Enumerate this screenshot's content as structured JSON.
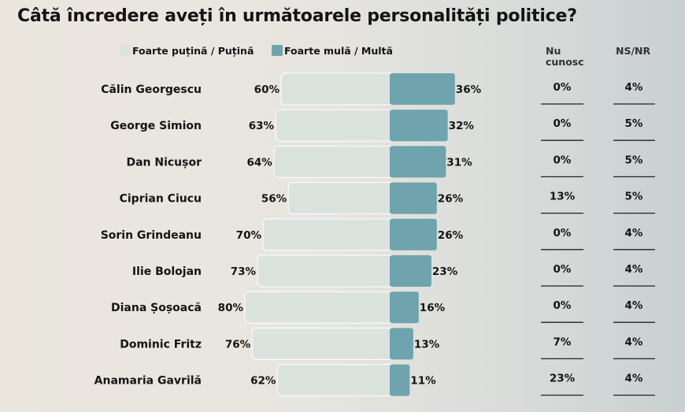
{
  "chart_data": {
    "type": "bar",
    "title": "Câtă încredere aveți în următoarele personalități politice?",
    "legend": {
      "low": "Foarte puțină / Puțină",
      "high": "Foarte mulă / Multă"
    },
    "extra_columns": {
      "nu_cunosc": "Nu cunosc",
      "ns_nr": "NS/NR"
    },
    "categories": [
      "Călin Georgescu",
      "George Simion",
      "Dan Nicușor",
      "Ciprian Ciucu",
      "Sorin Grindeanu",
      "Ilie Bolojan",
      "Diana Șoșoacă",
      "Dominic Fritz",
      "Anamaria Gavrilă"
    ],
    "series": [
      {
        "name": "Foarte puțină / Puțină",
        "values": [
          60,
          63,
          64,
          56,
          70,
          73,
          80,
          76,
          62
        ]
      },
      {
        "name": "Foarte mulă / Multă",
        "values": [
          36,
          32,
          31,
          26,
          26,
          23,
          16,
          13,
          11
        ]
      },
      {
        "name": "Nu cunosc",
        "values": [
          0,
          0,
          0,
          13,
          0,
          0,
          0,
          7,
          23
        ]
      },
      {
        "name": "NS/NR",
        "values": [
          4,
          5,
          5,
          5,
          4,
          4,
          4,
          4,
          4
        ]
      }
    ],
    "unit": "%",
    "colors": {
      "low": "#dbe3df",
      "high": "#6fa3ad",
      "rule": "#222222"
    }
  }
}
